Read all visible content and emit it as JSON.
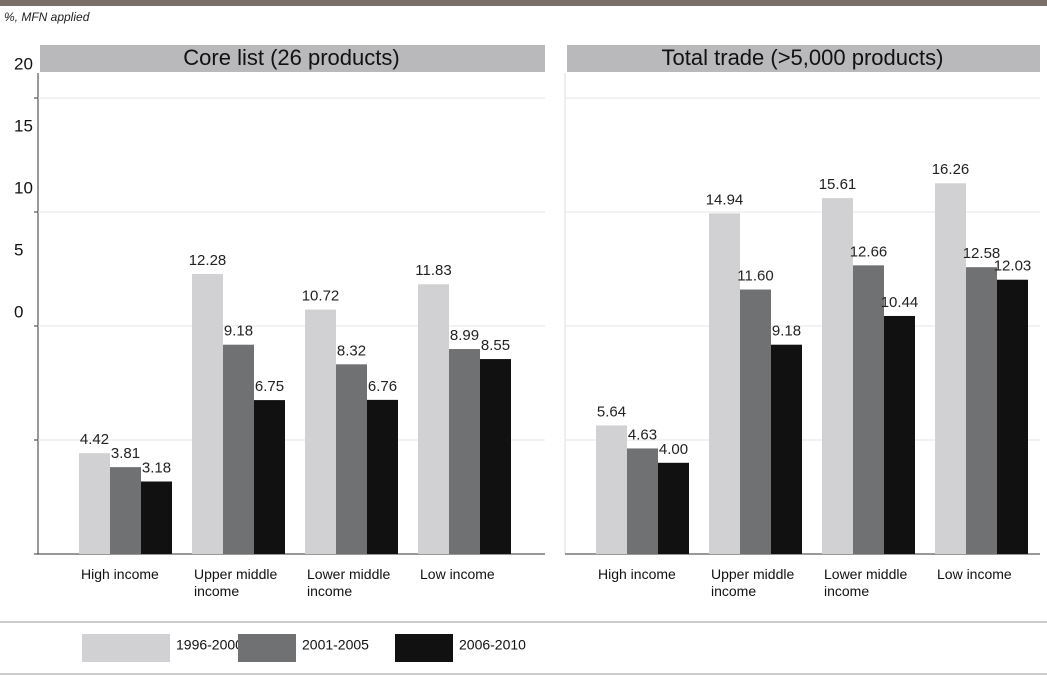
{
  "axis_note": "%, MFN applied",
  "chart_data": [
    {
      "type": "bar",
      "title": "Core list (26 products)",
      "categories": [
        "High income",
        "Upper middle income",
        "Lower middle income",
        "Low income"
      ],
      "series": [
        {
          "name": "1996-2000",
          "color": "#d1d1d3",
          "values": [
            4.42,
            12.28,
            10.72,
            11.83
          ],
          "value_labels": [
            "4.42",
            "12.28",
            "10.72",
            "11.83"
          ]
        },
        {
          "name": "2001-2005",
          "color": "#707173",
          "values": [
            3.81,
            9.18,
            8.32,
            8.99
          ],
          "value_labels": [
            "3.81",
            "9.18",
            "8.32",
            "8.99"
          ]
        },
        {
          "name": "2006-2010",
          "color": "#111111",
          "values": [
            3.18,
            6.75,
            6.76,
            8.55
          ],
          "value_labels": [
            "3.18",
            "6.75",
            "6.76",
            "8.55"
          ]
        }
      ],
      "ylim": [
        0,
        20
      ],
      "yticks": [
        20,
        15,
        10,
        5,
        0
      ],
      "grid": true
    },
    {
      "type": "bar",
      "title": "Total trade (>5,000 products)",
      "categories": [
        "High income",
        "Upper middle income",
        "Lower middle income",
        "Low income"
      ],
      "series": [
        {
          "color": "#d1d1d3",
          "values": [
            5.64,
            14.94,
            15.61,
            16.26
          ],
          "value_labels": [
            "5.64",
            "14.94",
            "15.61",
            "16.26"
          ]
        },
        {
          "color": "#707173",
          "values": [
            4.63,
            11.6,
            12.66,
            12.58
          ],
          "value_labels": [
            "4.63",
            "11.60",
            "12.66",
            "12.58"
          ]
        },
        {
          "color": "#111111",
          "values": [
            4.0,
            9.18,
            10.44,
            12.03
          ],
          "value_labels": [
            "4.00",
            "9.18",
            "10.44",
            "12.03"
          ]
        }
      ],
      "ylim": [
        0,
        20
      ],
      "yticks": [
        20,
        15,
        10,
        5,
        0
      ],
      "grid": true
    }
  ]
}
